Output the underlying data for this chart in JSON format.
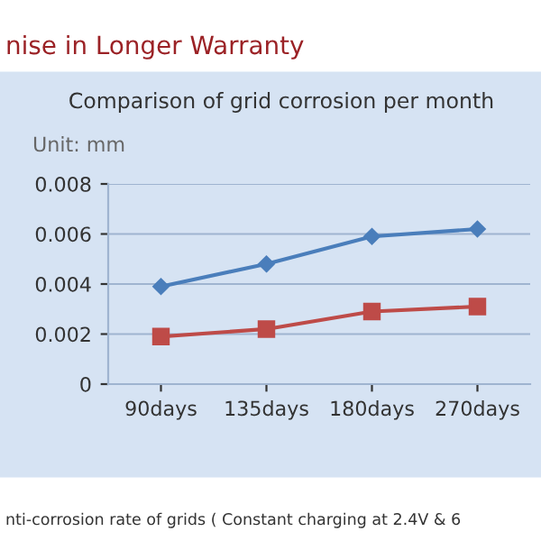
{
  "chart_data": {
    "type": "line",
    "title": "Comparison of grid corrosion per month",
    "annotations": [
      "nise in Longer Warranty",
      "Unit: mm",
      "nti-corrosion rate of grids ( Constant charging at 2.4V & 6"
    ],
    "categories": [
      "90days",
      "135days",
      "180days",
      "270days"
    ],
    "series": [
      {
        "color": "#4a7ebb",
        "marker": "diamond",
        "values": [
          0.0039,
          0.0048,
          0.0059,
          0.0062
        ]
      },
      {
        "color": "#be4b48",
        "marker": "square",
        "values": [
          0.0019,
          0.0022,
          0.0029,
          0.0031
        ]
      }
    ],
    "ylim": [
      0,
      0.008
    ],
    "yticks": [
      {
        "value": 0,
        "label": "0"
      },
      {
        "value": 0.002,
        "label": "0.002"
      },
      {
        "value": 0.004,
        "label": "0.004"
      },
      {
        "value": 0.006,
        "label": "0.006"
      },
      {
        "value": 0.008,
        "label": "0.008"
      }
    ],
    "grid": "y",
    "line_style": "solid"
  }
}
